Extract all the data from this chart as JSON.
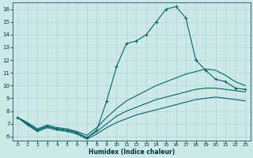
{
  "xlabel": "Humidex (Indice chaleur)",
  "xlim": [
    -0.5,
    23.5
  ],
  "ylim": [
    5.7,
    16.5
  ],
  "xticks": [
    0,
    1,
    2,
    3,
    4,
    5,
    6,
    7,
    8,
    9,
    10,
    11,
    12,
    13,
    14,
    15,
    16,
    17,
    18,
    19,
    20,
    21,
    22,
    23
  ],
  "yticks": [
    6,
    7,
    8,
    9,
    10,
    11,
    12,
    13,
    14,
    15,
    16
  ],
  "bg_color": "#cce8e8",
  "line_color": "#006666",
  "grid_color": "#b0d4d4",
  "lines": [
    {
      "x": [
        0,
        1,
        2,
        3,
        4,
        5,
        6,
        7,
        8,
        9,
        10,
        11,
        12,
        13,
        14,
        15,
        16,
        17,
        18,
        19,
        20,
        21,
        22,
        23
      ],
      "y": [
        7.5,
        7.0,
        6.5,
        6.8,
        6.6,
        6.5,
        6.3,
        5.9,
        6.5,
        8.8,
        11.5,
        13.3,
        13.5,
        14.0,
        15.0,
        16.0,
        16.2,
        15.3,
        12.0,
        11.2,
        10.5,
        10.3,
        9.8,
        9.7
      ],
      "marker": true
    },
    {
      "x": [
        0,
        1,
        2,
        3,
        4,
        5,
        6,
        7,
        8,
        9,
        10,
        11,
        12,
        13,
        14,
        15,
        16,
        17,
        18,
        19,
        20,
        21,
        22,
        23
      ],
      "y": [
        7.5,
        7.1,
        6.6,
        6.9,
        6.7,
        6.6,
        6.4,
        6.1,
        6.7,
        7.5,
        8.2,
        8.8,
        9.2,
        9.6,
        10.0,
        10.3,
        10.6,
        10.9,
        11.1,
        11.3,
        11.2,
        10.8,
        10.3,
        10.0
      ],
      "marker": false
    },
    {
      "x": [
        0,
        1,
        2,
        3,
        4,
        5,
        6,
        7,
        8,
        9,
        10,
        11,
        12,
        13,
        14,
        15,
        16,
        17,
        18,
        19,
        20,
        21,
        22,
        23
      ],
      "y": [
        7.5,
        7.0,
        6.5,
        6.8,
        6.6,
        6.5,
        6.3,
        5.9,
        6.4,
        7.0,
        7.6,
        8.0,
        8.3,
        8.6,
        8.9,
        9.1,
        9.3,
        9.5,
        9.7,
        9.8,
        9.8,
        9.7,
        9.6,
        9.5
      ],
      "marker": false
    },
    {
      "x": [
        0,
        1,
        2,
        3,
        4,
        5,
        6,
        7,
        8,
        9,
        10,
        11,
        12,
        13,
        14,
        15,
        16,
        17,
        18,
        19,
        20,
        21,
        22,
        23
      ],
      "y": [
        7.5,
        6.9,
        6.4,
        6.7,
        6.5,
        6.4,
        6.2,
        5.8,
        6.2,
        6.7,
        7.1,
        7.4,
        7.7,
        7.9,
        8.1,
        8.3,
        8.5,
        8.7,
        8.9,
        9.0,
        9.1,
        9.0,
        8.9,
        8.8
      ],
      "marker": false
    }
  ]
}
